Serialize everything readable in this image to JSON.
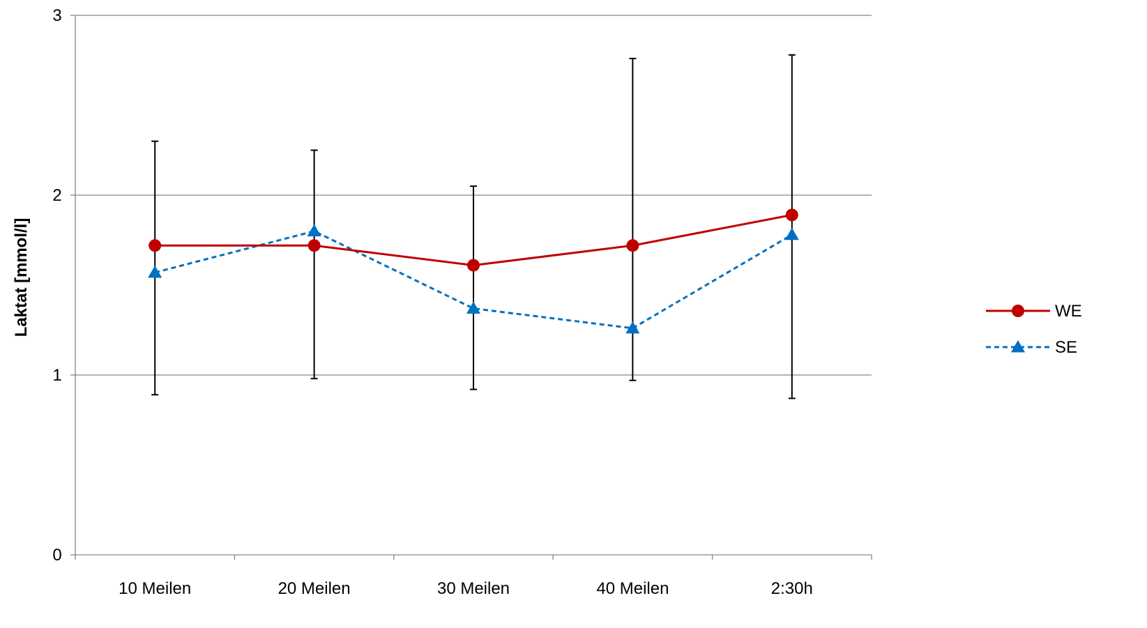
{
  "chart_data": {
    "type": "line",
    "categories": [
      "10 Meilen",
      "20 Meilen",
      "30 Meilen",
      "40 Meilen",
      "2:30h"
    ],
    "ylabel": "Laktat [mmol/l]",
    "xlabel": "",
    "ylim": [
      0,
      3
    ],
    "yticks": [
      "0",
      "1",
      "2",
      "3"
    ],
    "grid": "horizontal",
    "legend_position": "right",
    "series": [
      {
        "name": "WE",
        "values": [
          1.72,
          1.72,
          1.61,
          1.72,
          1.89
        ],
        "color": "#C00000",
        "line_style": "solid",
        "marker": "circle"
      },
      {
        "name": "SE",
        "values": [
          1.57,
          1.8,
          1.37,
          1.26,
          1.78
        ],
        "color": "#0070C0",
        "line_style": "dashed",
        "marker": "triangle"
      }
    ],
    "error_bars": [
      {
        "low": 0.89,
        "high": 2.3
      },
      {
        "low": 0.98,
        "high": 2.25
      },
      {
        "low": 0.92,
        "high": 2.05
      },
      {
        "low": 0.97,
        "high": 2.76
      },
      {
        "low": 0.87,
        "high": 2.78
      }
    ]
  }
}
